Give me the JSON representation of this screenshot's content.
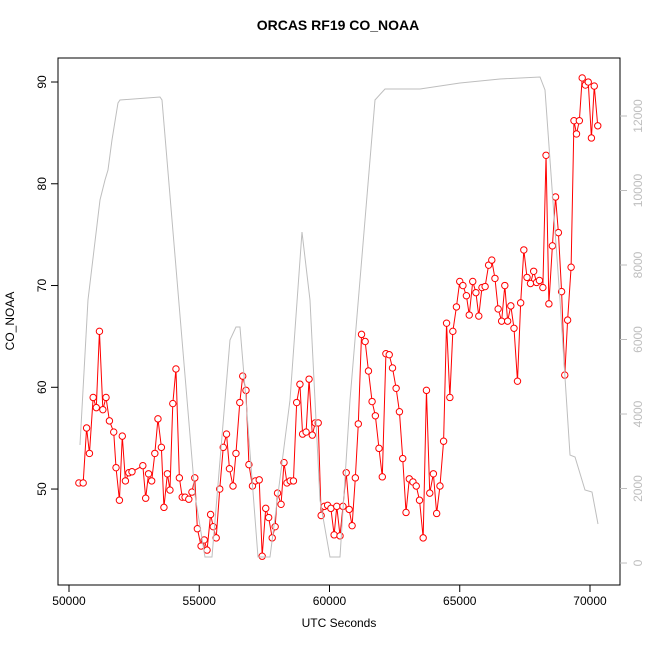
{
  "chart_data": {
    "type": "line",
    "title": "ORCAS RF19 CO_NOAA",
    "x_label": "UTC Seconds",
    "y_label": "CO_NOAA",
    "xlim": [
      49578,
      71152
    ],
    "xticks": [
      50000,
      55000,
      60000,
      65000,
      70000
    ],
    "ylim": [
      40.57,
      92.36
    ],
    "yticks": [
      50,
      60,
      70,
      80,
      90
    ],
    "y2lim": [
      -590,
      13557
    ],
    "y2ticks": [
      0,
      2000,
      4000,
      6000,
      8000,
      10000,
      12000
    ],
    "series": [
      {
        "color": "#ff0000",
        "marker": "circle",
        "x": [
          50380,
          50544,
          50676,
          50785,
          50928,
          51048,
          51169,
          51300,
          51421,
          51552,
          51717,
          51805,
          51936,
          52046,
          52166,
          52298,
          52418,
          52835,
          52944,
          53054,
          53174,
          53295,
          53415,
          53547,
          53645,
          53777,
          53876,
          53985,
          54106,
          54237,
          54347,
          54456,
          54599,
          54719,
          54829,
          54928,
          55070,
          55191,
          55300,
          55436,
          55538,
          55651,
          55787,
          55922,
          56047,
          56160,
          56296,
          56409,
          56556,
          56669,
          56794,
          56907,
          57043,
          57156,
          57303,
          57416,
          57552,
          57665,
          57801,
          57914,
          58005,
          58141,
          58254,
          58367,
          58491,
          58616,
          58740,
          58865,
          58967,
          59102,
          59216,
          59340,
          59453,
          59567,
          59680,
          59804,
          59929,
          60053,
          60178,
          60280,
          60404,
          60517,
          60642,
          60755,
          60868,
          60992,
          61106,
          61230,
          61369,
          61496,
          61635,
          61761,
          61900,
          62027,
          62166,
          62293,
          62419,
          62558,
          62685,
          62811,
          62938,
          63064,
          63203,
          63330,
          63456,
          63596,
          63722,
          63849,
          63988,
          64114,
          64241,
          64380,
          64494,
          64621,
          64735,
          64873,
          65000,
          65122,
          65256,
          65365,
          65499,
          65621,
          65731,
          65853,
          65974,
          66108,
          66230,
          66352,
          66474,
          66608,
          66730,
          66839,
          66961,
          67083,
          67217,
          67339,
          67460,
          67582,
          67716,
          67838,
          67948,
          68058,
          68191,
          68313,
          68422,
          68557,
          68678,
          68788,
          68910,
          69032,
          69141,
          69275,
          69385,
          69482,
          69592,
          69701,
          69823,
          69933,
          70055,
          70164,
          70298
        ],
        "values": [
          50.6,
          50.6,
          56.0,
          53.5,
          59.0,
          58.0,
          65.5,
          57.8,
          59.0,
          56.7,
          55.6,
          52.1,
          48.9,
          55.2,
          50.8,
          51.6,
          51.7,
          52.3,
          49.1,
          51.5,
          50.8,
          53.5,
          56.9,
          54.1,
          48.2,
          51.5,
          49.9,
          58.4,
          61.8,
          51.1,
          49.2,
          49.2,
          49.0,
          49.7,
          51.1,
          46.1,
          44.4,
          45.0,
          44.0,
          47.5,
          46.3,
          45.2,
          50.0,
          54.1,
          55.4,
          52.0,
          50.3,
          53.5,
          58.5,
          61.1,
          59.7,
          52.4,
          50.3,
          50.8,
          50.9,
          43.4,
          48.1,
          47.2,
          45.2,
          46.3,
          49.6,
          48.5,
          52.6,
          50.6,
          50.8,
          50.8,
          58.5,
          60.3,
          55.4,
          55.6,
          60.8,
          55.3,
          56.5,
          56.5,
          47.4,
          48.3,
          48.4,
          48.1,
          45.5,
          48.3,
          45.4,
          48.3,
          51.6,
          48.0,
          46.4,
          51.1,
          56.4,
          65.2,
          64.5,
          61.6,
          58.6,
          57.2,
          54.0,
          51.2,
          63.3,
          63.2,
          61.9,
          59.9,
          57.6,
          53.0,
          47.7,
          51.0,
          50.7,
          50.3,
          48.9,
          45.2,
          59.7,
          49.6,
          51.5,
          47.6,
          50.3,
          54.7,
          66.3,
          59.0,
          65.5,
          67.9,
          70.4,
          70.0,
          69.0,
          67.1,
          70.4,
          69.3,
          67.0,
          69.8,
          69.9,
          72.0,
          72.5,
          70.7,
          67.7,
          66.5,
          70.0,
          66.5,
          68.0,
          65.8,
          60.6,
          68.3,
          73.5,
          70.8,
          70.2,
          71.4,
          70.3,
          70.5,
          69.8,
          82.8,
          68.2,
          73.9,
          78.7,
          75.2,
          69.4,
          61.2,
          66.6,
          71.8,
          86.2,
          84.9,
          86.2,
          90.4,
          89.7,
          90.0,
          84.5,
          89.6,
          85.7
        ]
      },
      {
        "color": "#bebebe",
        "axis": "y2",
        "x": [
          50422,
          50729,
          51190,
          51382,
          51497,
          51650,
          51881,
          51958,
          53493,
          53570,
          54837,
          55220,
          55489,
          56180,
          56411,
          56564,
          56795,
          57255,
          57716,
          58484,
          58944,
          59251,
          59635,
          60019,
          60403,
          60787,
          61747,
          62131,
          63474,
          65010,
          66545,
          68081,
          68273,
          68849,
          69233,
          69425,
          69808,
          70077,
          70307
        ],
        "values": [
          3168,
          7060,
          9745,
          10282,
          10550,
          11356,
          12350,
          12430,
          12510,
          12430,
          1825,
          160,
          160,
          5986,
          6335,
          6335,
          4376,
          160,
          160,
          4376,
          8886,
          7060,
          1691,
          160,
          160,
          4376,
          12430,
          12725,
          12725,
          12886,
          12993,
          13047,
          12698,
          7060,
          2899,
          2846,
          1960,
          1906,
          1047
        ]
      }
    ]
  }
}
